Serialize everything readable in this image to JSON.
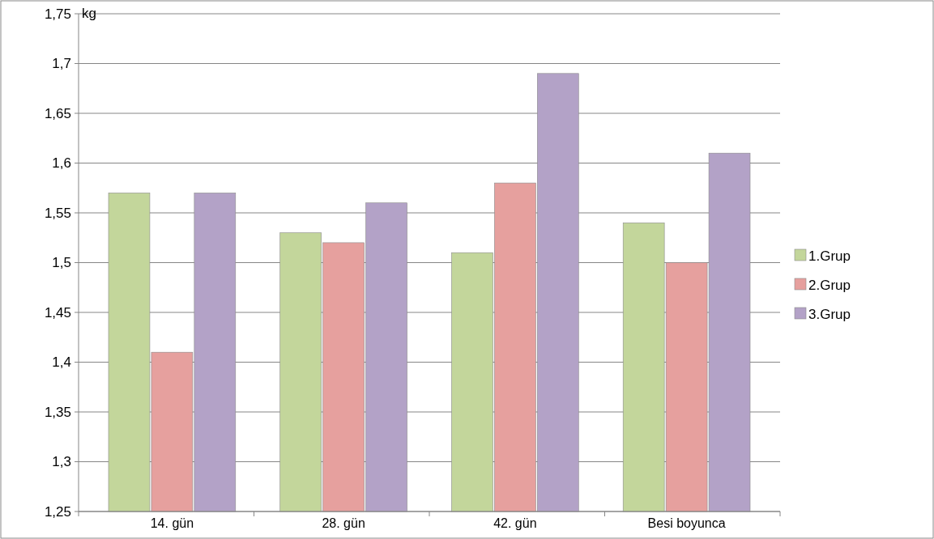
{
  "chart_data": {
    "type": "bar",
    "ylabel": "kg",
    "categories": [
      "14. gün",
      "28. gün",
      "42. gün",
      "Besi boyunca"
    ],
    "series": [
      {
        "name": "1.Grup",
        "color": "#c3d69b",
        "values": [
          1.57,
          1.53,
          1.51,
          1.54
        ]
      },
      {
        "name": "2.Grup",
        "color": "#e6a09e",
        "values": [
          1.41,
          1.52,
          1.58,
          1.5
        ]
      },
      {
        "name": "3.Grup",
        "color": "#b3a2c7",
        "values": [
          1.57,
          1.56,
          1.69,
          1.61
        ]
      }
    ],
    "ylim": [
      1.25,
      1.75
    ],
    "yticks": [
      {
        "value": 1.25,
        "label": "1,25"
      },
      {
        "value": 1.3,
        "label": "1,3"
      },
      {
        "value": 1.35,
        "label": "1,35"
      },
      {
        "value": 1.4,
        "label": "1,4"
      },
      {
        "value": 1.45,
        "label": "1,45"
      },
      {
        "value": 1.5,
        "label": "1,5"
      },
      {
        "value": 1.55,
        "label": "1,55"
      },
      {
        "value": 1.6,
        "label": "1,6"
      },
      {
        "value": 1.65,
        "label": "1,65"
      },
      {
        "value": 1.7,
        "label": "1,7"
      },
      {
        "value": 1.75,
        "label": "1,75"
      }
    ],
    "grid": "y",
    "legend": "right"
  }
}
